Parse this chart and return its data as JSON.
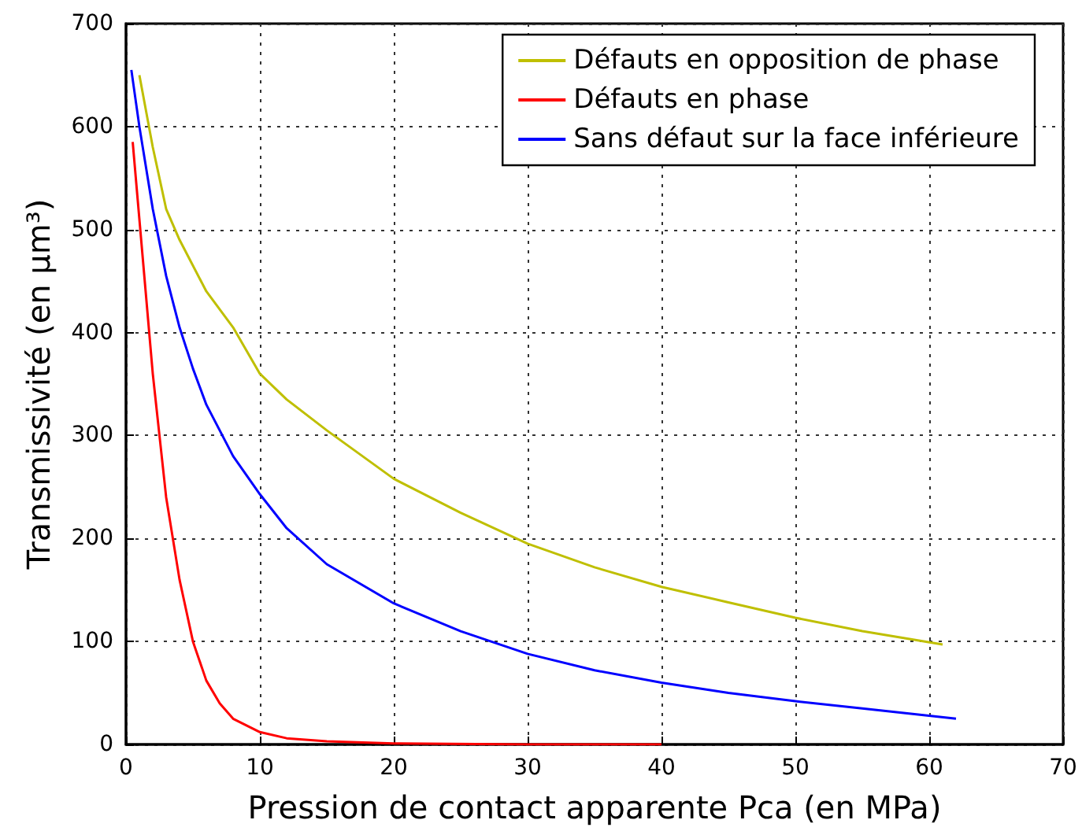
{
  "chart_data": {
    "type": "line",
    "xlabel": "Pression de contact apparente Pca (en MPa)",
    "ylabel": "Transmissivité (en µm³)",
    "xlim": [
      0,
      70
    ],
    "xticks": [
      0,
      10,
      20,
      30,
      40,
      50,
      60,
      70
    ],
    "ylim": [
      0,
      700
    ],
    "yticks": [
      0,
      100,
      200,
      300,
      400,
      500,
      600,
      700
    ],
    "grid": true,
    "legend": "top right",
    "marker": "none",
    "line_style": "solid",
    "series": [
      {
        "name": "Défauts en opposition de phase",
        "color": "#bfbf00",
        "x": [
          1,
          2,
          3,
          4,
          6,
          8,
          10,
          12,
          15,
          20,
          25,
          30,
          35,
          40,
          45,
          50,
          55,
          61
        ],
        "values": [
          650,
          580,
          520,
          490,
          440,
          405,
          360,
          335,
          305,
          258,
          225,
          195,
          172,
          153,
          138,
          123,
          110,
          97
        ]
      },
      {
        "name": "Défauts en phase",
        "color": "#ff0000",
        "x": [
          0.5,
          1,
          2,
          3,
          4,
          5,
          6,
          7,
          8,
          10,
          12,
          15,
          20,
          30,
          40
        ],
        "values": [
          585,
          510,
          360,
          240,
          160,
          100,
          62,
          40,
          25,
          12,
          6,
          3,
          1,
          0,
          0
        ]
      },
      {
        "name": "Sans défaut sur la face inférieure",
        "color": "#0000ff",
        "x": [
          0.4,
          1,
          2,
          3,
          4,
          5,
          6,
          8,
          10,
          12,
          15,
          20,
          25,
          30,
          35,
          40,
          45,
          50,
          55,
          62
        ],
        "values": [
          655,
          600,
          520,
          455,
          405,
          365,
          330,
          280,
          243,
          210,
          175,
          137,
          110,
          88,
          72,
          60,
          50,
          42,
          35,
          25
        ]
      }
    ]
  }
}
